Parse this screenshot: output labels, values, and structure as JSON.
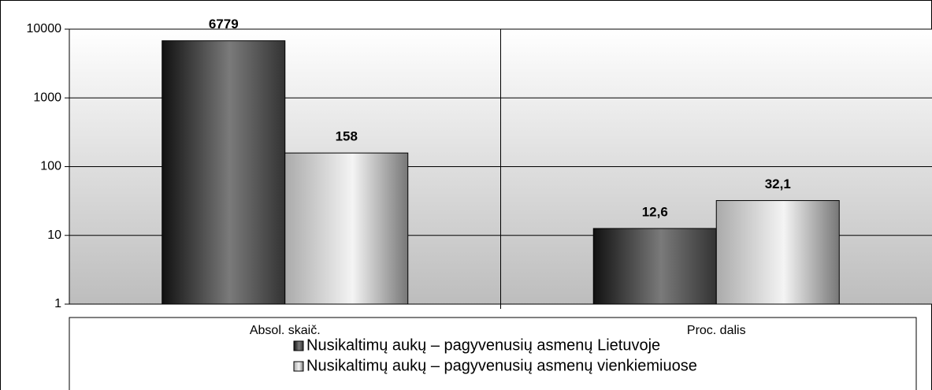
{
  "chart_data": {
    "type": "bar",
    "categories": [
      "Absol. skaič.",
      "Proc. dalis"
    ],
    "series": [
      {
        "name": "Nusikaltimų aukų – pagyvenusių asmenų Lietuvoje",
        "color": "#7a7a7a",
        "values": [
          6779,
          12.6
        ],
        "value_labels": [
          "6779",
          "12,6"
        ]
      },
      {
        "name": "Nusikaltimų aukų – pagyvenusių asmenų vienkiemiuose",
        "color": "#f4f4f4",
        "values": [
          158,
          32.1
        ],
        "value_labels": [
          "158",
          "32,1"
        ]
      }
    ],
    "ylim": [
      1,
      10000
    ],
    "yticks": [
      1,
      10,
      100,
      1000,
      10000
    ],
    "log_scale": true,
    "grid": true,
    "legend": "bottom"
  }
}
